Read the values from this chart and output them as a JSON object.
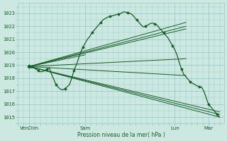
{
  "xlabel": "Pression niveau de la mer( hPa )",
  "bg_color": "#cce8e0",
  "grid_color": "#99cccc",
  "line_color": "#1a5c2a",
  "ylim": [
    1014.5,
    1023.8
  ],
  "yticks": [
    1015,
    1016,
    1017,
    1018,
    1019,
    1020,
    1021,
    1022,
    1023
  ],
  "xtick_labels": [
    "VenDim",
    "Sam",
    "Lun",
    "Mar"
  ],
  "xtick_positions": [
    0.5,
    3.0,
    7.0,
    8.5
  ],
  "xlim": [
    0.0,
    9.2
  ],
  "forecast_lines": [
    {
      "x": [
        0.5,
        9.0
      ],
      "y": [
        1018.9,
        1015.0
      ]
    },
    {
      "x": [
        0.5,
        9.0
      ],
      "y": [
        1018.9,
        1015.2
      ]
    },
    {
      "x": [
        0.5,
        9.0
      ],
      "y": [
        1018.9,
        1015.4
      ]
    },
    {
      "x": [
        0.5,
        7.5
      ],
      "y": [
        1018.9,
        1022.3
      ]
    },
    {
      "x": [
        0.5,
        7.5
      ],
      "y": [
        1018.9,
        1022.0
      ]
    },
    {
      "x": [
        0.5,
        7.5
      ],
      "y": [
        1018.9,
        1021.8
      ]
    },
    {
      "x": [
        0.5,
        7.5
      ],
      "y": [
        1018.9,
        1019.5
      ]
    },
    {
      "x": [
        0.5,
        7.5
      ],
      "y": [
        1018.9,
        1018.2
      ]
    },
    {
      "x": [
        0.5,
        3.0
      ],
      "y": [
        1018.9,
        1019.8
      ]
    }
  ],
  "obs_x": [
    0.5,
    0.6,
    0.7,
    0.8,
    0.9,
    1.0,
    1.1,
    1.2,
    1.3,
    1.4,
    1.5,
    1.6,
    1.7,
    1.8,
    1.9,
    2.0,
    2.1,
    2.2,
    2.3,
    2.4,
    2.5,
    2.6,
    2.7,
    2.8,
    2.9,
    3.0,
    3.1,
    3.2,
    3.3,
    3.4,
    3.5,
    3.6,
    3.7,
    3.8,
    3.9,
    4.0,
    4.1,
    4.2,
    4.3,
    4.4,
    4.5,
    4.6,
    4.7,
    4.8,
    4.9,
    5.0,
    5.1,
    5.2,
    5.3,
    5.4,
    5.5,
    5.6,
    5.7,
    5.8,
    5.9,
    6.0,
    6.1,
    6.2,
    6.3,
    6.4,
    6.5,
    6.6,
    6.7,
    6.8,
    6.9,
    7.0,
    7.1,
    7.2,
    7.3,
    7.4,
    7.5,
    7.6,
    7.7,
    7.8,
    7.9,
    8.0,
    8.1,
    8.2,
    8.3,
    8.4,
    8.5,
    8.6,
    8.7,
    8.8,
    8.9,
    9.0
  ],
  "obs_y": [
    1018.9,
    1018.8,
    1018.8,
    1018.7,
    1018.6,
    1018.5,
    1018.5,
    1018.6,
    1018.7,
    1018.8,
    1018.3,
    1017.9,
    1017.5,
    1017.3,
    1017.15,
    1017.1,
    1017.2,
    1017.35,
    1017.5,
    1018.0,
    1018.6,
    1019.0,
    1019.5,
    1020.0,
    1020.4,
    1020.7,
    1021.0,
    1021.2,
    1021.5,
    1021.7,
    1021.9,
    1022.1,
    1022.3,
    1022.5,
    1022.6,
    1022.7,
    1022.75,
    1022.8,
    1022.85,
    1022.9,
    1022.95,
    1023.0,
    1023.1,
    1023.1,
    1023.05,
    1023.0,
    1022.9,
    1022.7,
    1022.5,
    1022.3,
    1022.1,
    1021.95,
    1022.0,
    1022.1,
    1022.2,
    1022.25,
    1022.2,
    1022.1,
    1021.9,
    1021.7,
    1021.5,
    1021.3,
    1021.1,
    1020.8,
    1020.5,
    1020.2,
    1019.8,
    1019.2,
    1018.7,
    1018.3,
    1018.1,
    1017.9,
    1017.7,
    1017.6,
    1017.5,
    1017.4,
    1017.35,
    1017.3,
    1017.0,
    1016.5,
    1016.0,
    1015.8,
    1015.6,
    1015.4,
    1015.2,
    1015.0
  ]
}
